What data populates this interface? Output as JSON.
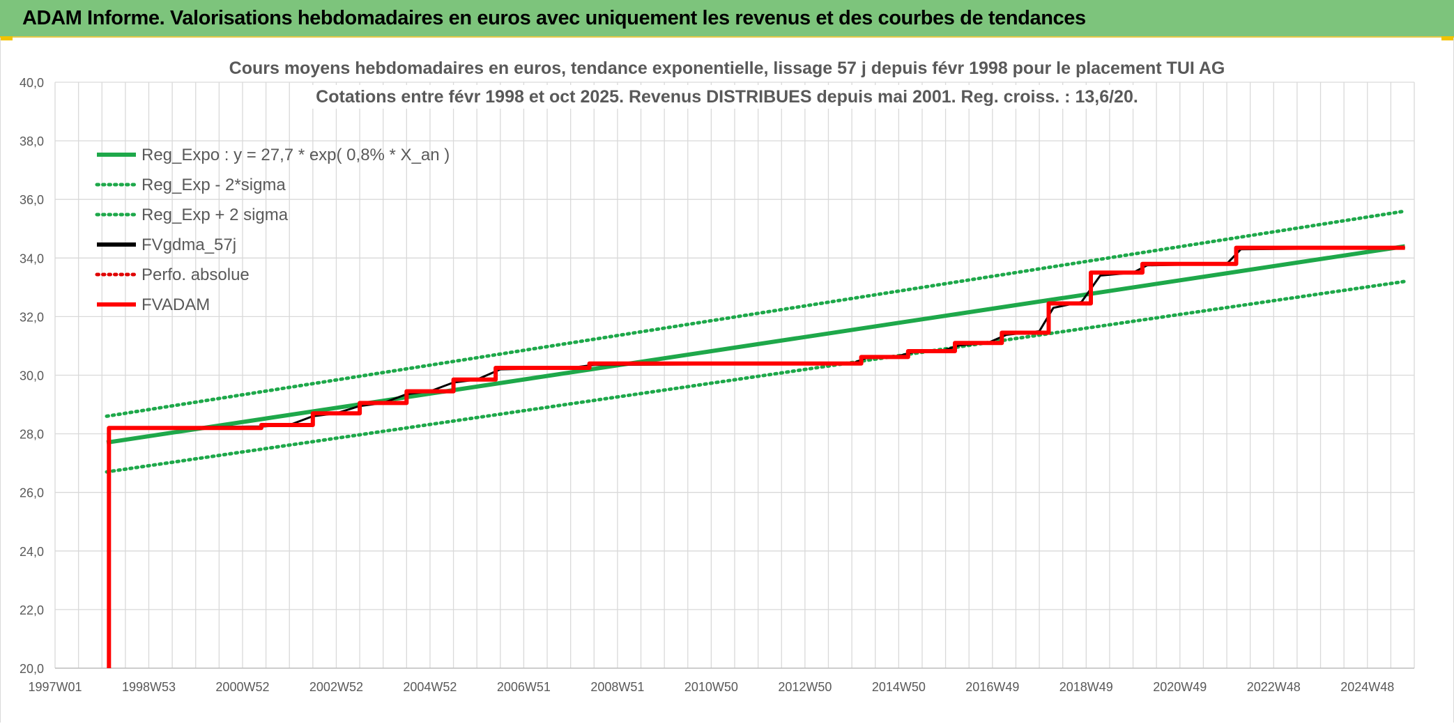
{
  "header": {
    "title": "ADAM Informe. Valorisations hebdomadaires en euros avec uniquement les revenus et des courbes de tendances"
  },
  "colors": {
    "header_bg": "#7dc47c",
    "trend_green": "#1ea84a",
    "fvadam_red": "#ff0000",
    "fvgdma_black": "#000000",
    "perfo_red": "#e00000",
    "grid": "#d9d9d9"
  },
  "chart_data": {
    "type": "line",
    "title": "Cours moyens hebdomadaires en euros, tendance exponentielle, lissage 57 j depuis févr 1998 pour le placement TUI AG",
    "subtitle": "Cotations entre févr 1998 et oct 2025. Revenus DISTRIBUES depuis mai 2001. Reg. croiss. : 13,6/20.",
    "xlabel": "",
    "ylabel": "",
    "ylim": [
      20,
      40
    ],
    "xlim": [
      1997.0,
      2026.0
    ],
    "grid": true,
    "legend_position": "top-left",
    "y_ticks": [
      "40,0",
      "38,0",
      "36,0",
      "34,0",
      "32,0",
      "30,0",
      "28,0",
      "26,0",
      "24,0",
      "22,0",
      "20,0"
    ],
    "y_tick_values": [
      40,
      38,
      36,
      34,
      32,
      30,
      28,
      26,
      24,
      22,
      20
    ],
    "x_ticks": [
      "1997W01",
      "1998W53",
      "2000W52",
      "2002W52",
      "2004W52",
      "2006W51",
      "2008W51",
      "2010W50",
      "2012W50",
      "2014W50",
      "2016W49",
      "2018W49",
      "2020W49",
      "2022W48",
      "2024W48"
    ],
    "x_tick_values": [
      1997.0,
      1999.0,
      2001.0,
      2003.0,
      2005.0,
      2007.0,
      2009.0,
      2011.0,
      2013.0,
      2015.0,
      2017.0,
      2019.0,
      2021.0,
      2023.0,
      2025.0
    ],
    "series": [
      {
        "name": "Reg_Expo : y = 27,7 * exp( 0,8% *  X_an )",
        "style": "solid",
        "color": "#1ea84a",
        "x": [
          1998.1,
          2025.8
        ],
        "y": [
          27.7,
          34.4
        ]
      },
      {
        "name": "Reg_Exp - 2*sigma",
        "style": "dotted",
        "color": "#1ea84a",
        "x": [
          1998.1,
          2025.8
        ],
        "y": [
          26.7,
          33.2
        ]
      },
      {
        "name": "Reg_Exp + 2 sigma",
        "style": "dotted",
        "color": "#1ea84a",
        "x": [
          1998.1,
          2025.8
        ],
        "y": [
          28.6,
          35.6
        ]
      },
      {
        "name": "FVgdma_57j",
        "style": "solid",
        "color": "#000000",
        "x": [
          1998.15,
          2001.4,
          2002.0,
          2002.5,
          2003.0,
          2003.5,
          2004.0,
          2004.5,
          2005.0,
          2005.5,
          2006.0,
          2006.5,
          2008.0,
          2008.5,
          2014.0,
          2014.3,
          2014.9,
          2015.3,
          2015.9,
          2016.3,
          2016.9,
          2017.3,
          2018.0,
          2018.3,
          2018.9,
          2019.3,
          2020.0,
          2020.3,
          2022.0,
          2022.3,
          2025.8
        ],
        "y": [
          28.2,
          28.25,
          28.3,
          28.6,
          28.7,
          28.95,
          29.05,
          29.35,
          29.45,
          29.75,
          29.85,
          30.2,
          30.25,
          30.35,
          30.4,
          30.58,
          30.62,
          30.78,
          30.82,
          31.02,
          31.1,
          31.38,
          31.5,
          32.3,
          32.5,
          33.4,
          33.5,
          33.75,
          33.8,
          34.3,
          34.35
        ]
      },
      {
        "name": "Perfo. absolue",
        "style": "dotted",
        "color": "#e00000",
        "x": [],
        "y": []
      },
      {
        "name": "FVADAM",
        "style": "solid",
        "color": "#ff0000",
        "x": [
          1998.15,
          1998.15,
          2001.4,
          2001.4,
          2002.5,
          2002.5,
          2003.5,
          2003.5,
          2004.5,
          2004.5,
          2005.5,
          2005.5,
          2006.4,
          2006.4,
          2008.4,
          2008.4,
          2014.2,
          2014.2,
          2015.2,
          2015.2,
          2016.2,
          2016.2,
          2017.2,
          2017.2,
          2018.2,
          2018.2,
          2019.1,
          2019.1,
          2020.2,
          2020.2,
          2022.2,
          2022.2,
          2025.8
        ],
        "y": [
          20.0,
          28.2,
          28.2,
          28.3,
          28.3,
          28.7,
          28.7,
          29.05,
          29.05,
          29.45,
          29.45,
          29.85,
          29.85,
          30.25,
          30.25,
          30.4,
          30.4,
          30.62,
          30.62,
          30.82,
          30.82,
          31.1,
          31.1,
          31.45,
          31.45,
          32.45,
          32.45,
          33.5,
          33.5,
          33.8,
          33.8,
          34.35,
          34.35
        ]
      }
    ]
  }
}
